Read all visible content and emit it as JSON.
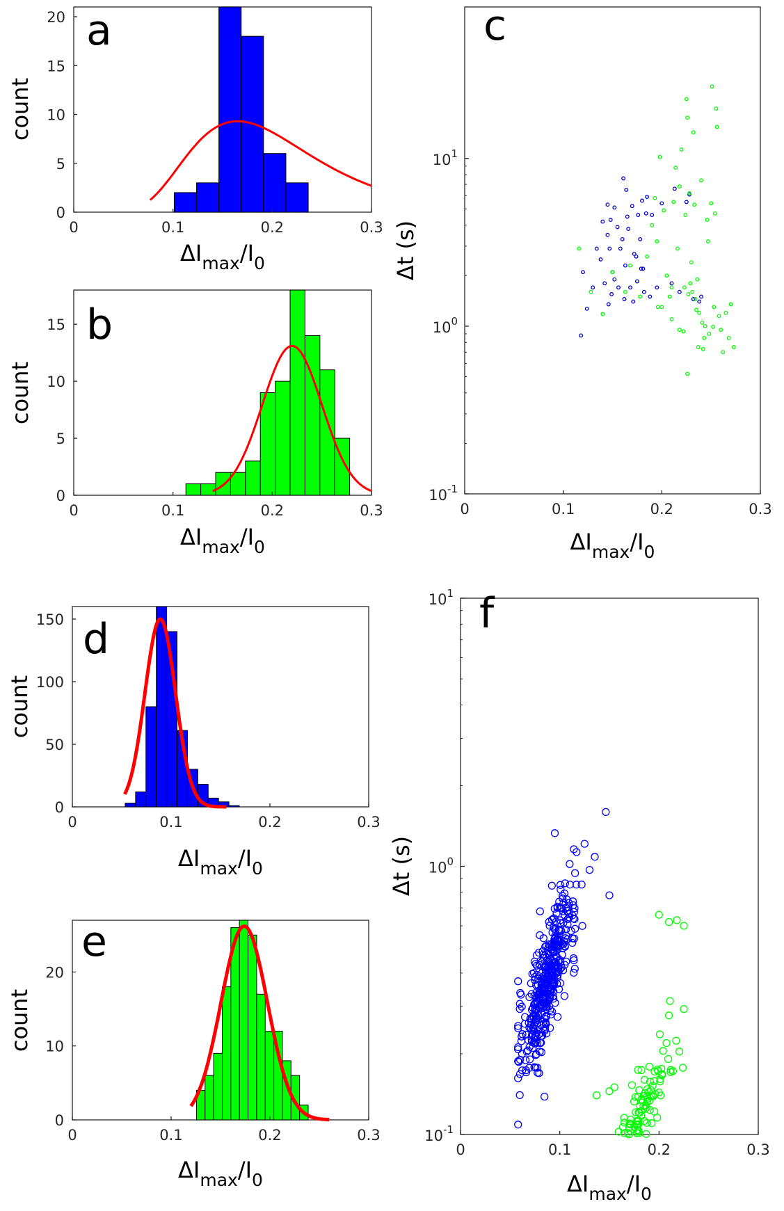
{
  "colors": {
    "blue": "#0000ff",
    "dark_blue": "#0000cd",
    "green": "#00ff00",
    "fit": "#ff0000",
    "axis": "#262626"
  },
  "chart_data": [
    {
      "panel": "a",
      "type": "bar",
      "ylabel": "count",
      "xlabel": {
        "main": "ΔI",
        "sub1": "max",
        "mid": "/I",
        "sub2": "0"
      },
      "xlim": [
        0,
        0.3
      ],
      "ylim": [
        0,
        21
      ],
      "xticks": [
        "0",
        "0.1",
        "0.2",
        "0.3"
      ],
      "yticks": [
        "0",
        "5",
        "10",
        "15",
        "20"
      ],
      "bar_color": "blue",
      "bin_width": 0.0225,
      "bins": [
        {
          "x": 0.1125,
          "count": 2
        },
        {
          "x": 0.135,
          "count": 3
        },
        {
          "x": 0.1575,
          "count": 21
        },
        {
          "x": 0.18,
          "count": 18
        },
        {
          "x": 0.2025,
          "count": 6
        },
        {
          "x": 0.225,
          "count": 3
        }
      ],
      "fit": {
        "kind": "lognormal",
        "peak_x": 0.165,
        "peak_y": 9.3,
        "x_start": 0.077,
        "x_end": 0.3
      }
    },
    {
      "panel": "b",
      "type": "bar",
      "ylabel": "count",
      "xlabel": {
        "main": "ΔI",
        "sub1": "max",
        "mid": "/I",
        "sub2": "0"
      },
      "xlim": [
        0,
        0.3
      ],
      "ylim": [
        0,
        18
      ],
      "xticks": [
        "0",
        "0.1",
        "0.2",
        "0.3"
      ],
      "yticks": [
        "0",
        "5",
        "10",
        "15"
      ],
      "bar_color": "green",
      "bin_width": 0.015,
      "bins": [
        {
          "x": 0.1205,
          "count": 1
        },
        {
          "x": 0.1355,
          "count": 1
        },
        {
          "x": 0.1505,
          "count": 2
        },
        {
          "x": 0.1655,
          "count": 2
        },
        {
          "x": 0.1805,
          "count": 3
        },
        {
          "x": 0.1955,
          "count": 9
        },
        {
          "x": 0.2105,
          "count": 10
        },
        {
          "x": 0.2255,
          "count": 18
        },
        {
          "x": 0.2405,
          "count": 14
        },
        {
          "x": 0.2555,
          "count": 11
        },
        {
          "x": 0.2705,
          "count": 5
        }
      ],
      "fit": {
        "kind": "gaussian",
        "mean": 0.22,
        "peak_y": 13.1,
        "sigma": 0.03,
        "x_start": 0.14,
        "x_end": 0.3
      }
    },
    {
      "panel": "c",
      "type": "scatter",
      "ylabel": "Δt (s)",
      "xlabel": {
        "main": "ΔI",
        "sub1": "max",
        "mid": "/I",
        "sub2": "0"
      },
      "xlim": [
        0,
        0.3
      ],
      "ylim": [
        0.1,
        80
      ],
      "yscale": "log",
      "xticks": [
        "0",
        "0.1",
        "0.2",
        "0.3"
      ],
      "yticks": [
        {
          "value": 0.1,
          "base": "10",
          "exp": "-1"
        },
        {
          "value": 1,
          "base": "10",
          "exp": "0"
        },
        {
          "value": 10,
          "base": "10",
          "exp": "1"
        }
      ],
      "marker_radius": 2.3,
      "series": [
        {
          "color": "dark_blue",
          "points": [
            [
              0.118,
              0.88
            ],
            [
              0.12,
              2.1
            ],
            [
              0.124,
              1.27
            ],
            [
              0.13,
              1.7
            ],
            [
              0.134,
              2.9
            ],
            [
              0.138,
              2.5
            ],
            [
              0.14,
              4.2
            ],
            [
              0.142,
              1.8
            ],
            [
              0.145,
              5.3
            ],
            [
              0.145,
              3.5
            ],
            [
              0.146,
              1.35
            ],
            [
              0.147,
              2.9
            ],
            [
              0.148,
              4.3
            ],
            [
              0.149,
              1.55
            ],
            [
              0.15,
              2.1
            ],
            [
              0.152,
              5.1
            ],
            [
              0.152,
              1.9
            ],
            [
              0.155,
              3.9
            ],
            [
              0.156,
              1.7
            ],
            [
              0.158,
              2.9
            ],
            [
              0.16,
              3.3
            ],
            [
              0.161,
              7.6
            ],
            [
              0.162,
              1.45
            ],
            [
              0.163,
              2.3
            ],
            [
              0.164,
              6.5
            ],
            [
              0.165,
              4.5
            ],
            [
              0.166,
              3.8
            ],
            [
              0.168,
              1.7
            ],
            [
              0.17,
              5.2
            ],
            [
              0.171,
              1.4
            ],
            [
              0.172,
              2.7
            ],
            [
              0.174,
              2.6
            ],
            [
              0.175,
              1.85
            ],
            [
              0.176,
              4.6
            ],
            [
              0.178,
              3.3
            ],
            [
              0.179,
              2.2
            ],
            [
              0.18,
              5.6
            ],
            [
              0.181,
              2.2
            ],
            [
              0.182,
              1.6
            ],
            [
              0.184,
              4.7
            ],
            [
              0.185,
              5.9
            ],
            [
              0.188,
              1.5
            ],
            [
              0.19,
              4.6
            ],
            [
              0.195,
              1.7
            ],
            [
              0.2,
              5.4
            ],
            [
              0.21,
              1.8
            ],
            [
              0.213,
              6.6
            ],
            [
              0.218,
              1.6
            ],
            [
              0.225,
              5.5
            ],
            [
              0.228,
              6.1
            ],
            [
              0.232,
              1.45
            ],
            [
              0.238,
              1.4
            ],
            [
              0.24,
              1.5
            ]
          ]
        },
        {
          "color": "green",
          "points": [
            [
              0.116,
              2.9
            ],
            [
              0.128,
              1.6
            ],
            [
              0.14,
              1.18
            ],
            [
              0.15,
              2.1
            ],
            [
              0.163,
              1.6
            ],
            [
              0.168,
              2.3
            ],
            [
              0.178,
              1.5
            ],
            [
              0.185,
              2.6
            ],
            [
              0.19,
              4.0
            ],
            [
              0.193,
              5.8
            ],
            [
              0.195,
              3.2
            ],
            [
              0.198,
              10.2
            ],
            [
              0.2,
              1.3
            ],
            [
              0.202,
              4.9
            ],
            [
              0.205,
              2.0
            ],
            [
              0.208,
              1.5
            ],
            [
              0.21,
              1.1
            ],
            [
              0.212,
              5.5
            ],
            [
              0.214,
              8.8
            ],
            [
              0.216,
              2.9
            ],
            [
              0.218,
              6.8
            ],
            [
              0.22,
              11.3
            ],
            [
              0.222,
              0.93
            ],
            [
              0.223,
              1.7
            ],
            [
              0.224,
              4.6
            ],
            [
              0.225,
              22.6
            ],
            [
              0.226,
              17.5
            ],
            [
              0.227,
              1.55
            ],
            [
              0.228,
              6.2
            ],
            [
              0.229,
              1.8
            ],
            [
              0.23,
              2.4
            ],
            [
              0.231,
              1.6
            ],
            [
              0.232,
              14.3
            ],
            [
              0.233,
              5.3
            ],
            [
              0.234,
              1.45
            ],
            [
              0.235,
              1.25
            ],
            [
              0.236,
              1.9
            ],
            [
              0.237,
              0.75
            ],
            [
              0.238,
              1.2
            ],
            [
              0.24,
              7.4
            ],
            [
              0.241,
              1.05
            ],
            [
              0.242,
              0.73
            ],
            [
              0.243,
              0.85
            ],
            [
              0.244,
              1.0
            ],
            [
              0.246,
              4.3
            ],
            [
              0.247,
              3.2
            ],
            [
              0.248,
              0.9
            ],
            [
              0.25,
              5.4
            ],
            [
              0.251,
              26.8
            ],
            [
              0.252,
              0.99
            ],
            [
              0.253,
              1.3
            ],
            [
              0.254,
              4.7
            ],
            [
              0.255,
              19.8
            ],
            [
              0.256,
              15.4
            ],
            [
              0.258,
              1.15
            ],
            [
              0.26,
              0.95
            ],
            [
              0.262,
              0.7
            ],
            [
              0.265,
              1.2
            ],
            [
              0.268,
              0.85
            ],
            [
              0.27,
              1.35
            ],
            [
              0.273,
              0.75
            ],
            [
              0.226,
              0.52
            ],
            [
              0.218,
              0.95
            ],
            [
              0.21,
              1.7
            ],
            [
              0.196,
              1.3
            ]
          ]
        }
      ]
    },
    {
      "panel": "d",
      "type": "bar",
      "ylabel": "count",
      "xlabel": {
        "main": "ΔI",
        "sub1": "max",
        "mid": "/I",
        "sub2": "0"
      },
      "xlim": [
        0,
        0.3
      ],
      "ylim": [
        0,
        160
      ],
      "xticks": [
        "0",
        "0.1",
        "0.2",
        "0.3"
      ],
      "yticks": [
        "0",
        "50",
        "100",
        "150"
      ],
      "bar_color": "blue",
      "bin_width": 0.0105,
      "bins": [
        {
          "x": 0.05875,
          "count": 3
        },
        {
          "x": 0.06925,
          "count": 12
        },
        {
          "x": 0.07975,
          "count": 80
        },
        {
          "x": 0.09025,
          "count": 160
        },
        {
          "x": 0.10075,
          "count": 140
        },
        {
          "x": 0.11125,
          "count": 61
        },
        {
          "x": 0.12175,
          "count": 30
        },
        {
          "x": 0.13225,
          "count": 18
        },
        {
          "x": 0.14275,
          "count": 7
        },
        {
          "x": 0.15325,
          "count": 4
        },
        {
          "x": 0.16375,
          "count": 1
        }
      ],
      "fit": {
        "kind": "gaussian",
        "mean": 0.089,
        "peak_y": 150,
        "sigma": 0.0155,
        "x_start": 0.053,
        "x_end": 0.156
      }
    },
    {
      "panel": "e",
      "type": "bar",
      "ylabel": "count",
      "xlabel": {
        "main": "ΔI",
        "sub1": "max",
        "mid": "/I",
        "sub2": "0"
      },
      "xlim": [
        0,
        0.3
      ],
      "ylim": [
        0,
        27
      ],
      "xticks": [
        "0",
        "0.1",
        "0.2",
        "0.3"
      ],
      "yticks": [
        "0",
        "10",
        "20"
      ],
      "bar_color": "green",
      "bin_width": 0.0087,
      "bins": [
        {
          "x": 0.13,
          "count": 4
        },
        {
          "x": 0.1387,
          "count": 6
        },
        {
          "x": 0.1474,
          "count": 9
        },
        {
          "x": 0.1561,
          "count": 18
        },
        {
          "x": 0.1648,
          "count": 26
        },
        {
          "x": 0.1735,
          "count": 27
        },
        {
          "x": 0.1822,
          "count": 25
        },
        {
          "x": 0.1909,
          "count": 17
        },
        {
          "x": 0.1996,
          "count": 12
        },
        {
          "x": 0.2083,
          "count": 12
        },
        {
          "x": 0.217,
          "count": 8
        },
        {
          "x": 0.2257,
          "count": 6
        },
        {
          "x": 0.2344,
          "count": 2
        }
      ],
      "fit": {
        "kind": "gaussian",
        "mean": 0.174,
        "peak_y": 26.2,
        "sigma": 0.0235,
        "x_start": 0.12,
        "x_end": 0.26
      }
    },
    {
      "panel": "f",
      "type": "scatter",
      "ylabel": "Δt (s)",
      "xlabel": {
        "main": "ΔI",
        "sub1": "max",
        "mid": "/I",
        "sub2": "0"
      },
      "xlim": [
        0,
        0.3
      ],
      "ylim": [
        0.1,
        10
      ],
      "yscale": "log",
      "xticks": [
        "0",
        "0.1",
        "0.2",
        "0.3"
      ],
      "yticks": [
        {
          "value": 0.1,
          "base": "10",
          "exp": "-1"
        },
        {
          "value": 1,
          "base": "10",
          "exp": "0"
        },
        {
          "value": 10,
          "base": "10",
          "exp": "1"
        }
      ],
      "marker_radius": 5,
      "series": [
        {
          "color": "blue",
          "cloud": {
            "count": 420,
            "x_mean": 0.088,
            "x_sd": 0.015,
            "x_min": 0.058,
            "x_max": 0.16,
            "log10_y_at_0": -1.3,
            "log10_y_slope": 10,
            "log10_y_sd": 0.1,
            "seed": 7
          },
          "points": [
            [
              0.06,
              0.19
            ],
            [
              0.062,
              0.2
            ],
            [
              0.095,
              1.33
            ],
            [
              0.1,
              0.7
            ],
            [
              0.11,
              1.02
            ],
            [
              0.13,
              0.97
            ],
            [
              0.15,
              0.78
            ]
          ]
        },
        {
          "color": "green",
          "cloud": {
            "count": 150,
            "x_mean": 0.175,
            "x_sd": 0.02,
            "x_min": 0.128,
            "x_max": 0.225,
            "log10_y_at_0": -2.26,
            "log10_y_slope": 7.3,
            "log10_y_sd": 0.07,
            "seed": 13
          },
          "points": [
            [
              0.137,
              0.14
            ],
            [
              0.15,
              0.145
            ],
            [
              0.155,
              0.15
            ],
            [
              0.2,
              0.66
            ],
            [
              0.21,
              0.62
            ],
            [
              0.225,
              0.6
            ],
            [
              0.218,
              0.63
            ]
          ]
        }
      ]
    }
  ],
  "panel_labels": [
    "a",
    "b",
    "c",
    "d",
    "e",
    "f"
  ]
}
